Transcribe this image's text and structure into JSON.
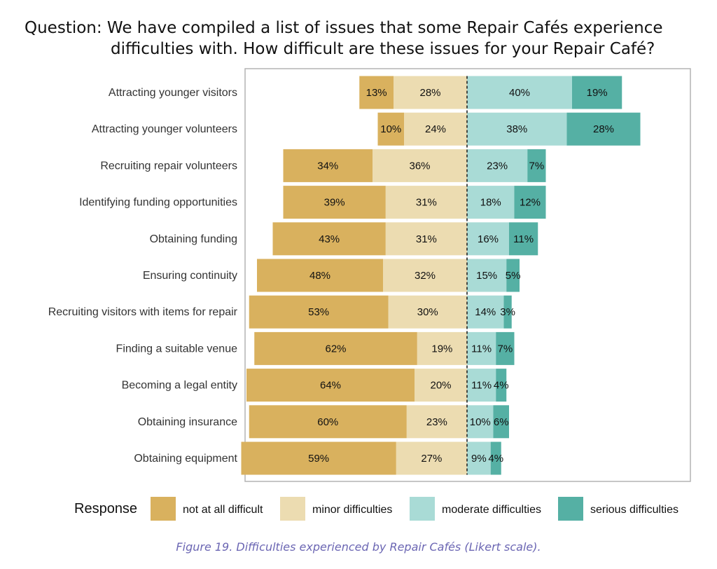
{
  "chart_data": {
    "type": "bar",
    "orientation": "horizontal",
    "stacked": "diverging",
    "title_lines": [
      "Question: We have compiled a list of issues that some Repair Cafés experience",
      "difficulties with. How difficult are these issues for your Repair Café?"
    ],
    "categories": [
      "Attracting younger visitors",
      "Attracting younger volunteers",
      "Recruiting repair volunteers",
      "Identifying funding opportunities",
      "Obtaining funding",
      "Ensuring continuity",
      "Recruiting visitors with items for repair",
      "Finding a suitable venue",
      "Becoming a legal entity",
      "Obtaining insurance",
      "Obtaining equipment"
    ],
    "series": [
      {
        "name": "not at all difficult",
        "side": "negative",
        "color": "#d9b15e",
        "values": [
          13,
          10,
          34,
          39,
          43,
          48,
          53,
          62,
          64,
          60,
          59
        ]
      },
      {
        "name": "minor difficulties",
        "side": "negative",
        "color": "#ecdcb1",
        "values": [
          28,
          24,
          36,
          31,
          31,
          32,
          30,
          19,
          20,
          23,
          27
        ]
      },
      {
        "name": "moderate difficulties",
        "side": "positive",
        "color": "#a9dbd6",
        "values": [
          40,
          38,
          23,
          18,
          16,
          15,
          14,
          11,
          11,
          10,
          9
        ]
      },
      {
        "name": "serious difficulties",
        "side": "positive",
        "color": "#55b0a4",
        "values": [
          19,
          28,
          7,
          12,
          11,
          5,
          3,
          7,
          4,
          6,
          4
        ]
      }
    ],
    "value_suffix": "%",
    "legend_title": "Response",
    "legend_position": "bottom",
    "grid": false,
    "caption": "Figure 19. Difficulties experienced by Repair Cafés (Likert scale)."
  }
}
